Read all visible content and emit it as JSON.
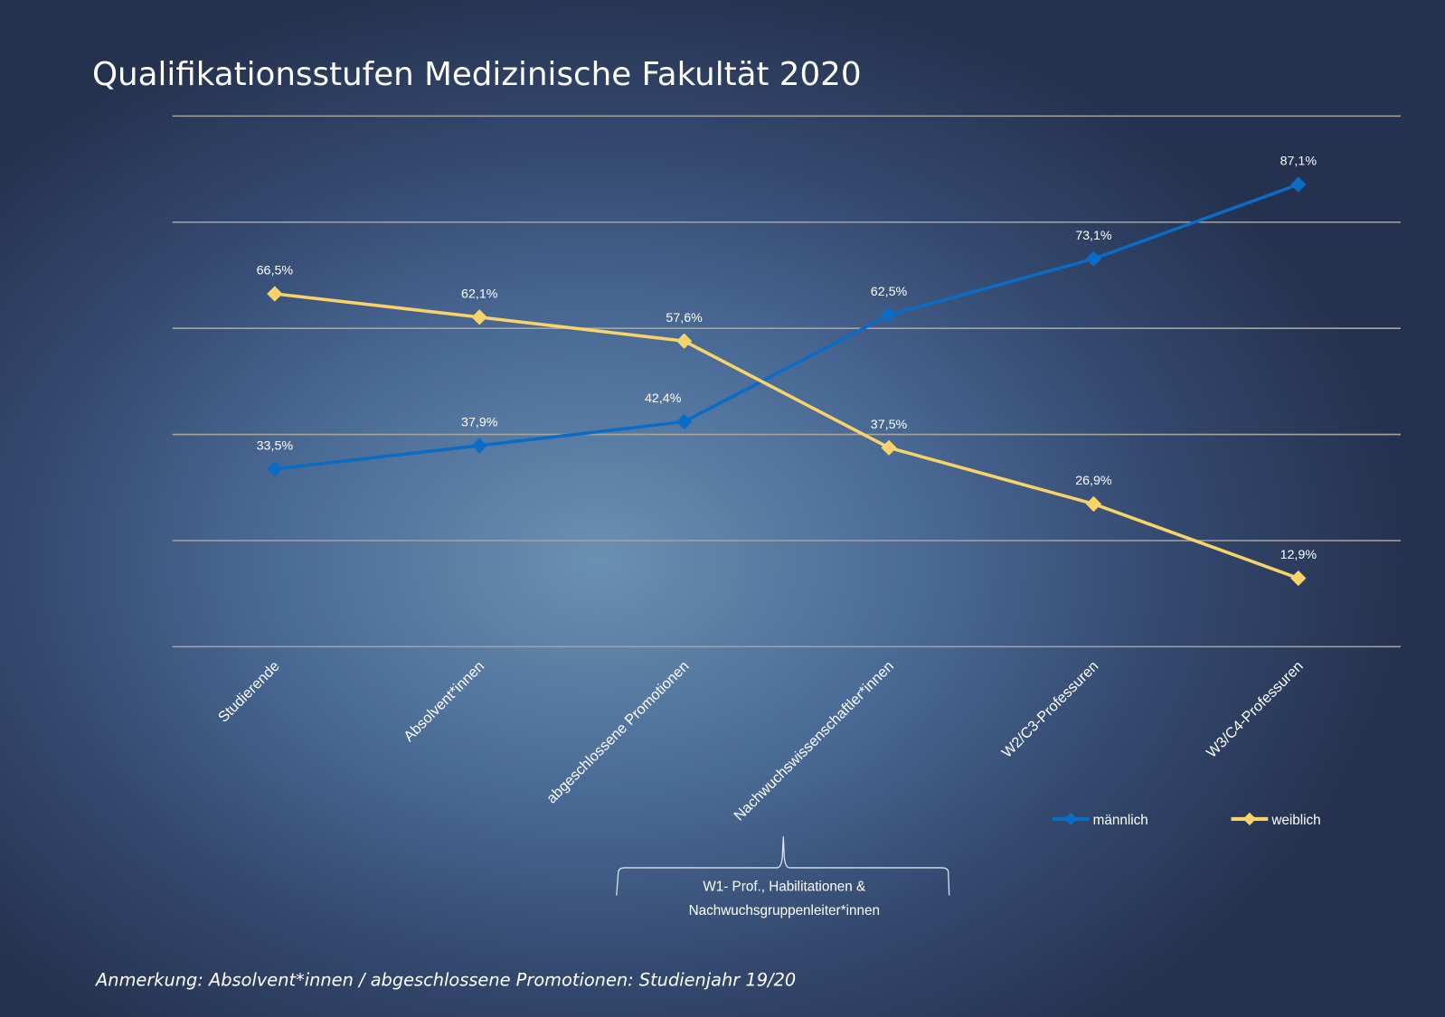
{
  "chart_data": {
    "type": "line",
    "title": "Qualifikationsstufen Medizinische Fakultät 2020",
    "categories": [
      "Studierende",
      "Absolvent*innen",
      "abgeschlossene Promotionen",
      "Nachwuchswissenschaftler*innen",
      "W2/C3-Professuren",
      "W3/C4-Professuren"
    ],
    "series": [
      {
        "name": "männlich",
        "color": "#0a6cc4",
        "values": [
          33.5,
          37.9,
          42.4,
          62.5,
          73.1,
          87.1
        ],
        "labels": [
          "33,5%",
          "37,9%",
          "42,4%",
          "62,5%",
          "73,1%",
          "87,1%"
        ]
      },
      {
        "name": "weiblich",
        "color": "#f7d36a",
        "values": [
          66.5,
          62.1,
          57.6,
          37.5,
          26.9,
          12.9
        ],
        "labels": [
          "66,5%",
          "62,1%",
          "57,6%",
          "37,5%",
          "26,9%",
          "12,9%"
        ]
      }
    ],
    "ylim": [
      0,
      100
    ],
    "grid": true,
    "legend": "bottom-right",
    "annotation": {
      "lines": [
        "W1- Prof., Habilitationen &",
        "Nachwuchsgruppenleiter*innen"
      ]
    },
    "note": "Anmerkung: Absolvent*innen / abgeschlossene Promotionen: Studienjahr 19/20"
  }
}
